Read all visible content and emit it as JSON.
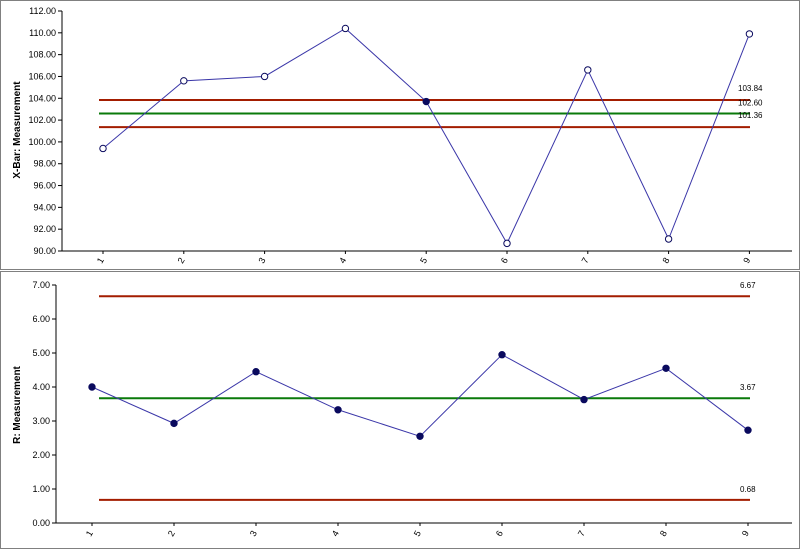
{
  "chart_data": [
    {
      "type": "line",
      "ylabel": "X-Bar: Measurement",
      "xlabel": "",
      "categories": [
        "1",
        "2",
        "3",
        "4",
        "5",
        "6",
        "7",
        "8",
        "9"
      ],
      "ylim": [
        90,
        112
      ],
      "yticks": [
        "90.00",
        "92.00",
        "94.00",
        "96.00",
        "98.00",
        "100.00",
        "102.00",
        "104.00",
        "106.00",
        "108.00",
        "110.00",
        "112.00"
      ],
      "series": [
        {
          "values": [
            99.4,
            105.6,
            106.0,
            110.4,
            103.7,
            90.7,
            106.6,
            91.1,
            109.9
          ],
          "marker_filled": [
            false,
            false,
            false,
            false,
            true,
            false,
            false,
            false,
            false
          ]
        }
      ],
      "control_limits": {
        "ucl": {
          "value": 103.84,
          "label": "103.84",
          "color": "#a31d00"
        },
        "center": {
          "value": 102.6,
          "label": "102.60",
          "color": "#0a7a0a"
        },
        "lcl": {
          "value": 101.36,
          "label": "101.36",
          "color": "#a31d00"
        }
      },
      "line_color": "#3a36a8",
      "grid": false
    },
    {
      "type": "line",
      "ylabel": "R: Measurement",
      "xlabel": "",
      "categories": [
        "1",
        "2",
        "3",
        "4",
        "5",
        "6",
        "7",
        "8",
        "9"
      ],
      "ylim": [
        0,
        7
      ],
      "yticks": [
        "0.00",
        "1.00",
        "2.00",
        "3.00",
        "4.00",
        "5.00",
        "6.00",
        "7.00"
      ],
      "series": [
        {
          "values": [
            4.0,
            2.93,
            4.45,
            3.33,
            2.55,
            4.95,
            3.63,
            4.55,
            2.73
          ],
          "marker_filled": [
            true,
            true,
            true,
            true,
            true,
            true,
            true,
            true,
            true
          ]
        }
      ],
      "control_limits": {
        "ucl": {
          "value": 6.67,
          "label": "6.67",
          "color": "#a31d00"
        },
        "center": {
          "value": 3.67,
          "label": "3.67",
          "color": "#0a7a0a"
        },
        "lcl": {
          "value": 0.68,
          "label": "0.68",
          "color": "#a31d00"
        }
      },
      "line_color": "#3a36a8",
      "grid": false
    }
  ]
}
